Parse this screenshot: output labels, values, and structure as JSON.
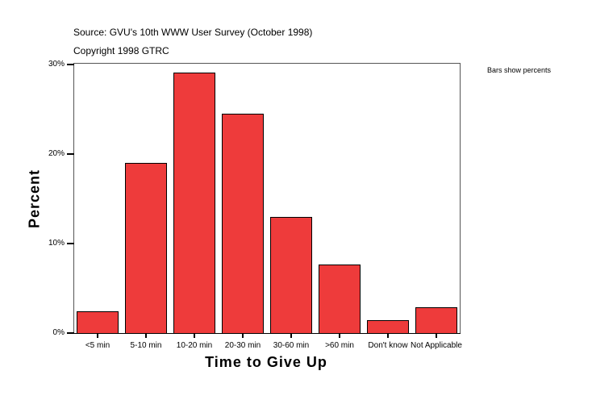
{
  "header": {
    "source": "Source: GVU's 10th WWW User Survey (October 1998)",
    "copyright": "Copyright 1998 GTRC",
    "note": "Bars show percents"
  },
  "chart_data": {
    "type": "bar",
    "title": "",
    "xlabel": "Time to Give Up",
    "ylabel": "Percent",
    "categories": [
      "<5 min",
      "5-10 min",
      "10-20 min",
      "20-30 min",
      "30-60 min",
      ">60 min",
      "Don't know",
      "Not Applicable"
    ],
    "values": [
      2.4,
      19.0,
      29.1,
      24.5,
      13.0,
      7.7,
      1.4,
      2.9
    ],
    "yticks": [
      "0%",
      "10%",
      "20%",
      "30%"
    ],
    "ylim": [
      0,
      30
    ],
    "bar_color": "#ee3b3b",
    "grid": false,
    "legend": false
  }
}
